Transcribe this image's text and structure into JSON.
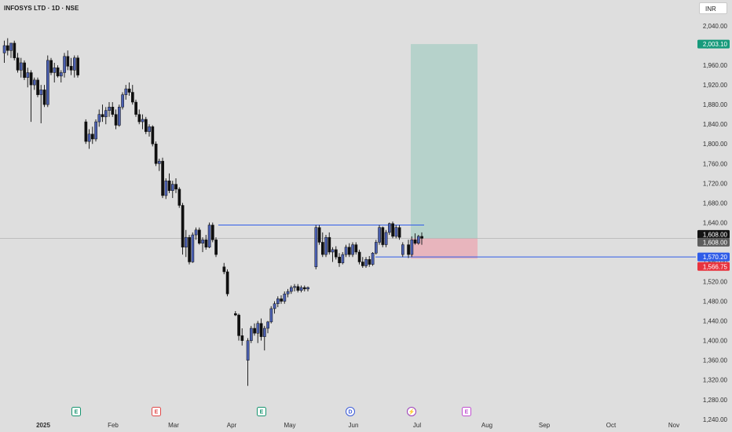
{
  "header": {
    "title": "INFOSYS LTD · 1D · NSE",
    "currency": "INR"
  },
  "colors": {
    "background": "#dedede",
    "up_body": "#4a5fb0",
    "down_body": "#0f0f0f",
    "level_line": "#2f5ce8",
    "target_zone": "#b6d2cb",
    "stop_zone": "#e8b5bd",
    "target_tag": "#179a7b",
    "stop_tag": "#e8343f",
    "level_tag": "#2f5ce8",
    "last_tag": "#131313",
    "prev_tag": "#5d5d5d"
  },
  "chart_data": {
    "type": "candlestick",
    "title": "INFOSYS LTD · 1D · NSE",
    "ylim": [
      1240,
      2060
    ],
    "y_ticks": [
      "2,040.00",
      "2,000.00",
      "1,960.00",
      "1,920.00",
      "1,880.00",
      "1,840.00",
      "1,800.00",
      "1,760.00",
      "1,720.00",
      "1,680.00",
      "1,640.00",
      "1,600.00",
      "1,560.00",
      "1,520.00",
      "1,480.00",
      "1,440.00",
      "1,400.00",
      "1,360.00",
      "1,320.00",
      "1,280.00",
      "1,240.00"
    ],
    "x_ticks": [
      "2025",
      "Feb",
      "Mar",
      "Apr",
      "May",
      "Jun",
      "Jul",
      "Aug",
      "Sep",
      "Oct",
      "Nov"
    ],
    "price_tags": [
      {
        "label": "2,003.10",
        "value": 2003.1,
        "role": "target"
      },
      {
        "label": "1,608.00",
        "value": 1608.0,
        "role": "last"
      },
      {
        "label": "1,608.00",
        "value": 1608.0,
        "role": "prev"
      },
      {
        "label": "1,570.20",
        "value": 1570.2,
        "role": "level"
      },
      {
        "label": "1,566.75",
        "value": 1566.75,
        "role": "stop"
      }
    ],
    "annotations": {
      "resistance_level": 1635,
      "stop_level": 1570.2,
      "position_entry": 1608,
      "position_target": 2003.1,
      "position_stop": 1566.75
    },
    "events": [
      {
        "label": "E",
        "kind": "earnings",
        "near": "Jan"
      },
      {
        "label": "E",
        "kind": "earnings-miss",
        "near": "Feb"
      },
      {
        "label": "E",
        "kind": "earnings",
        "near": "Apr"
      },
      {
        "label": "D",
        "kind": "dividend",
        "near": "May"
      },
      {
        "label": "⚡",
        "kind": "split",
        "near": "Jun"
      },
      {
        "label": "E",
        "kind": "earnings-upcoming",
        "near": "Jul"
      }
    ],
    "candles": [
      {
        "o": 1985,
        "h": 2010,
        "l": 1965,
        "c": 2000
      },
      {
        "o": 2000,
        "h": 2015,
        "l": 1980,
        "c": 1990
      },
      {
        "o": 1990,
        "h": 2005,
        "l": 1975,
        "c": 2005
      },
      {
        "o": 2005,
        "h": 2010,
        "l": 1970,
        "c": 1975
      },
      {
        "o": 1975,
        "h": 1985,
        "l": 1945,
        "c": 1950
      },
      {
        "o": 1950,
        "h": 1975,
        "l": 1935,
        "c": 1965
      },
      {
        "o": 1965,
        "h": 1970,
        "l": 1930,
        "c": 1935
      },
      {
        "o": 1935,
        "h": 1955,
        "l": 1915,
        "c": 1945
      },
      {
        "o": 1945,
        "h": 1950,
        "l": 1845,
        "c": 1920
      },
      {
        "o": 1920,
        "h": 1935,
        "l": 1910,
        "c": 1930
      },
      {
        "o": 1930,
        "h": 1935,
        "l": 1895,
        "c": 1900
      },
      {
        "o": 1900,
        "h": 1920,
        "l": 1842,
        "c": 1910
      },
      {
        "o": 1910,
        "h": 1920,
        "l": 1875,
        "c": 1880
      },
      {
        "o": 1880,
        "h": 1980,
        "l": 1875,
        "c": 1970
      },
      {
        "o": 1970,
        "h": 1975,
        "l": 1940,
        "c": 1945
      },
      {
        "o": 1945,
        "h": 1965,
        "l": 1925,
        "c": 1955
      },
      {
        "o": 1955,
        "h": 1960,
        "l": 1935,
        "c": 1938
      },
      {
        "o": 1938,
        "h": 1950,
        "l": 1925,
        "c": 1945
      },
      {
        "o": 1945,
        "h": 1985,
        "l": 1935,
        "c": 1978
      },
      {
        "o": 1978,
        "h": 1990,
        "l": 1950,
        "c": 1958
      },
      {
        "o": 1958,
        "h": 1975,
        "l": 1940,
        "c": 1950
      },
      {
        "o": 1950,
        "h": 1980,
        "l": 1935,
        "c": 1975
      },
      {
        "o": 1975,
        "h": 1980,
        "l": 1935,
        "c": 1940
      },
      {
        "o": 1845,
        "h": 1850,
        "l": 1800,
        "c": 1805
      },
      {
        "o": 1805,
        "h": 1830,
        "l": 1790,
        "c": 1820
      },
      {
        "o": 1820,
        "h": 1835,
        "l": 1800,
        "c": 1810
      },
      {
        "o": 1810,
        "h": 1850,
        "l": 1805,
        "c": 1845
      },
      {
        "o": 1845,
        "h": 1870,
        "l": 1835,
        "c": 1860
      },
      {
        "o": 1860,
        "h": 1880,
        "l": 1845,
        "c": 1855
      },
      {
        "o": 1855,
        "h": 1875,
        "l": 1840,
        "c": 1868
      },
      {
        "o": 1868,
        "h": 1885,
        "l": 1855,
        "c": 1875
      },
      {
        "o": 1875,
        "h": 1885,
        "l": 1855,
        "c": 1860
      },
      {
        "o": 1860,
        "h": 1870,
        "l": 1830,
        "c": 1838
      },
      {
        "o": 1838,
        "h": 1880,
        "l": 1835,
        "c": 1875
      },
      {
        "o": 1875,
        "h": 1905,
        "l": 1870,
        "c": 1900
      },
      {
        "o": 1900,
        "h": 1920,
        "l": 1890,
        "c": 1912
      },
      {
        "o": 1912,
        "h": 1925,
        "l": 1898,
        "c": 1905
      },
      {
        "o": 1905,
        "h": 1920,
        "l": 1880,
        "c": 1885
      },
      {
        "o": 1885,
        "h": 1890,
        "l": 1855,
        "c": 1860
      },
      {
        "o": 1860,
        "h": 1870,
        "l": 1840,
        "c": 1845
      },
      {
        "o": 1845,
        "h": 1860,
        "l": 1830,
        "c": 1850
      },
      {
        "o": 1850,
        "h": 1855,
        "l": 1820,
        "c": 1825
      },
      {
        "o": 1825,
        "h": 1840,
        "l": 1815,
        "c": 1835
      },
      {
        "o": 1835,
        "h": 1838,
        "l": 1795,
        "c": 1800
      },
      {
        "o": 1800,
        "h": 1805,
        "l": 1755,
        "c": 1760
      },
      {
        "o": 1760,
        "h": 1770,
        "l": 1745,
        "c": 1765
      },
      {
        "o": 1765,
        "h": 1772,
        "l": 1690,
        "c": 1695
      },
      {
        "o": 1695,
        "h": 1730,
        "l": 1688,
        "c": 1725
      },
      {
        "o": 1725,
        "h": 1740,
        "l": 1700,
        "c": 1705
      },
      {
        "o": 1705,
        "h": 1725,
        "l": 1690,
        "c": 1718
      },
      {
        "o": 1718,
        "h": 1730,
        "l": 1700,
        "c": 1708
      },
      {
        "o": 1708,
        "h": 1712,
        "l": 1670,
        "c": 1675
      },
      {
        "o": 1675,
        "h": 1680,
        "l": 1575,
        "c": 1590
      },
      {
        "o": 1590,
        "h": 1625,
        "l": 1570,
        "c": 1610
      },
      {
        "o": 1610,
        "h": 1615,
        "l": 1555,
        "c": 1560
      },
      {
        "o": 1560,
        "h": 1620,
        "l": 1558,
        "c": 1615
      },
      {
        "o": 1615,
        "h": 1630,
        "l": 1605,
        "c": 1625
      },
      {
        "o": 1625,
        "h": 1630,
        "l": 1595,
        "c": 1598
      },
      {
        "o": 1598,
        "h": 1610,
        "l": 1580,
        "c": 1605
      },
      {
        "o": 1605,
        "h": 1615,
        "l": 1585,
        "c": 1590
      },
      {
        "o": 1590,
        "h": 1640,
        "l": 1588,
        "c": 1635
      },
      {
        "o": 1635,
        "h": 1640,
        "l": 1600,
        "c": 1605
      },
      {
        "o": 1605,
        "h": 1610,
        "l": 1570,
        "c": 1575
      },
      {
        "o": 1550,
        "h": 1558,
        "l": 1535,
        "c": 1540
      },
      {
        "o": 1540,
        "h": 1545,
        "l": 1490,
        "c": 1495
      },
      {
        "o": 1455,
        "h": 1460,
        "l": 1450,
        "c": 1452
      },
      {
        "o": 1452,
        "h": 1455,
        "l": 1400,
        "c": 1410
      },
      {
        "o": 1410,
        "h": 1425,
        "l": 1390,
        "c": 1400
      },
      {
        "o": 1360,
        "h": 1405,
        "l": 1308,
        "c": 1400
      },
      {
        "o": 1400,
        "h": 1430,
        "l": 1395,
        "c": 1425
      },
      {
        "o": 1425,
        "h": 1435,
        "l": 1410,
        "c": 1415
      },
      {
        "o": 1415,
        "h": 1440,
        "l": 1395,
        "c": 1435
      },
      {
        "o": 1435,
        "h": 1445,
        "l": 1400,
        "c": 1408
      },
      {
        "o": 1408,
        "h": 1430,
        "l": 1380,
        "c": 1425
      },
      {
        "o": 1425,
        "h": 1440,
        "l": 1415,
        "c": 1438
      },
      {
        "o": 1438,
        "h": 1470,
        "l": 1435,
        "c": 1465
      },
      {
        "o": 1465,
        "h": 1480,
        "l": 1455,
        "c": 1475
      },
      {
        "o": 1475,
        "h": 1490,
        "l": 1468,
        "c": 1485
      },
      {
        "o": 1485,
        "h": 1492,
        "l": 1475,
        "c": 1480
      },
      {
        "o": 1480,
        "h": 1500,
        "l": 1475,
        "c": 1495
      },
      {
        "o": 1495,
        "h": 1505,
        "l": 1488,
        "c": 1500
      },
      {
        "o": 1500,
        "h": 1512,
        "l": 1495,
        "c": 1508
      },
      {
        "o": 1508,
        "h": 1515,
        "l": 1500,
        "c": 1510
      },
      {
        "o": 1510,
        "h": 1515,
        "l": 1498,
        "c": 1502
      },
      {
        "o": 1502,
        "h": 1512,
        "l": 1498,
        "c": 1508
      },
      {
        "o": 1508,
        "h": 1512,
        "l": 1500,
        "c": 1505
      },
      {
        "o": 1505,
        "h": 1510,
        "l": 1500,
        "c": 1508
      },
      {
        "o": 1550,
        "h": 1635,
        "l": 1545,
        "c": 1630
      },
      {
        "o": 1630,
        "h": 1635,
        "l": 1595,
        "c": 1600
      },
      {
        "o": 1600,
        "h": 1620,
        "l": 1570,
        "c": 1575
      },
      {
        "o": 1575,
        "h": 1615,
        "l": 1570,
        "c": 1610
      },
      {
        "o": 1610,
        "h": 1620,
        "l": 1575,
        "c": 1580
      },
      {
        "o": 1580,
        "h": 1590,
        "l": 1560,
        "c": 1585
      },
      {
        "o": 1585,
        "h": 1592,
        "l": 1565,
        "c": 1570
      },
      {
        "o": 1570,
        "h": 1578,
        "l": 1550,
        "c": 1558
      },
      {
        "o": 1558,
        "h": 1580,
        "l": 1555,
        "c": 1575
      },
      {
        "o": 1575,
        "h": 1595,
        "l": 1570,
        "c": 1590
      },
      {
        "o": 1590,
        "h": 1598,
        "l": 1570,
        "c": 1575
      },
      {
        "o": 1575,
        "h": 1600,
        "l": 1570,
        "c": 1595
      },
      {
        "o": 1595,
        "h": 1600,
        "l": 1575,
        "c": 1580
      },
      {
        "o": 1580,
        "h": 1585,
        "l": 1555,
        "c": 1560
      },
      {
        "o": 1560,
        "h": 1570,
        "l": 1548,
        "c": 1552
      },
      {
        "o": 1552,
        "h": 1570,
        "l": 1548,
        "c": 1565
      },
      {
        "o": 1565,
        "h": 1572,
        "l": 1550,
        "c": 1555
      },
      {
        "o": 1555,
        "h": 1580,
        "l": 1552,
        "c": 1578
      },
      {
        "o": 1578,
        "h": 1605,
        "l": 1575,
        "c": 1600
      },
      {
        "o": 1600,
        "h": 1635,
        "l": 1595,
        "c": 1630
      },
      {
        "o": 1630,
        "h": 1632,
        "l": 1590,
        "c": 1595
      },
      {
        "o": 1595,
        "h": 1625,
        "l": 1590,
        "c": 1620
      },
      {
        "o": 1620,
        "h": 1640,
        "l": 1615,
        "c": 1638
      },
      {
        "o": 1638,
        "h": 1642,
        "l": 1608,
        "c": 1612
      },
      {
        "o": 1612,
        "h": 1635,
        "l": 1608,
        "c": 1630
      },
      {
        "o": 1630,
        "h": 1635,
        "l": 1605,
        "c": 1610
      },
      {
        "o": 1575,
        "h": 1600,
        "l": 1570,
        "c": 1595
      },
      {
        "o": 1595,
        "h": 1605,
        "l": 1568,
        "c": 1575
      },
      {
        "o": 1575,
        "h": 1612,
        "l": 1570,
        "c": 1605
      },
      {
        "o": 1605,
        "h": 1618,
        "l": 1595,
        "c": 1598
      },
      {
        "o": 1598,
        "h": 1615,
        "l": 1595,
        "c": 1612
      },
      {
        "o": 1612,
        "h": 1620,
        "l": 1595,
        "c": 1608
      }
    ]
  }
}
